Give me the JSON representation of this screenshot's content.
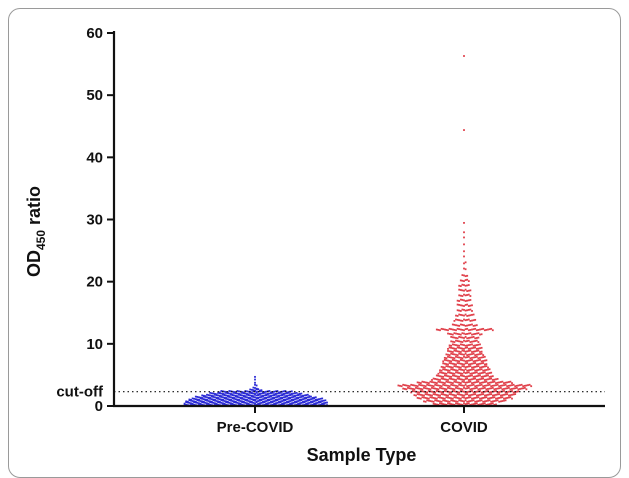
{
  "chart_data": {
    "type": "scatter",
    "subtype": "dot-strip",
    "xlabel": "Sample Type",
    "ylabel_main": "OD",
    "ylabel_sub": "450",
    "ylabel_tail": " ratio",
    "categories": [
      "Pre-COVID",
      "COVID"
    ],
    "ylim": [
      0,
      60
    ],
    "yticks": [
      0,
      10,
      20,
      30,
      40,
      50,
      60
    ],
    "yticklabels": [
      "0",
      "10",
      "20",
      "30",
      "40",
      "50",
      "60"
    ],
    "cutoff": {
      "value": 2.3,
      "label": "cut-off",
      "style": "dotted"
    },
    "grid": false,
    "colors": {
      "Pre-COVID": "#2b2bd6",
      "COVID": "#e0404a",
      "axis": "#111111"
    },
    "series": [
      {
        "name": "Pre-COVID",
        "distribution": [
          {
            "y": 0.2,
            "n": 90
          },
          {
            "y": 0.5,
            "n": 90
          },
          {
            "y": 0.8,
            "n": 88
          },
          {
            "y": 1.1,
            "n": 84
          },
          {
            "y": 1.4,
            "n": 76
          },
          {
            "y": 1.7,
            "n": 68
          },
          {
            "y": 2.0,
            "n": 58
          },
          {
            "y": 2.3,
            "n": 46
          },
          {
            "y": 2.6,
            "n": 8
          },
          {
            "y": 2.9,
            "n": 3
          },
          {
            "y": 3.3,
            "n": 2
          },
          {
            "y": 3.8,
            "n": 1
          },
          {
            "y": 4.2,
            "n": 1
          },
          {
            "y": 4.8,
            "n": 1
          }
        ]
      },
      {
        "name": "COVID",
        "distribution": [
          {
            "y": 0.3,
            "n": 40
          },
          {
            "y": 0.8,
            "n": 52
          },
          {
            "y": 1.3,
            "n": 60
          },
          {
            "y": 1.8,
            "n": 64
          },
          {
            "y": 2.3,
            "n": 68
          },
          {
            "y": 2.8,
            "n": 78
          },
          {
            "y": 3.3,
            "n": 84
          },
          {
            "y": 3.8,
            "n": 60
          },
          {
            "y": 4.3,
            "n": 42
          },
          {
            "y": 4.8,
            "n": 36
          },
          {
            "y": 5.3,
            "n": 34
          },
          {
            "y": 5.8,
            "n": 32
          },
          {
            "y": 6.3,
            "n": 30
          },
          {
            "y": 6.8,
            "n": 28
          },
          {
            "y": 7.3,
            "n": 28
          },
          {
            "y": 7.8,
            "n": 26
          },
          {
            "y": 8.3,
            "n": 24
          },
          {
            "y": 8.8,
            "n": 22
          },
          {
            "y": 9.3,
            "n": 22
          },
          {
            "y": 9.8,
            "n": 20
          },
          {
            "y": 10.4,
            "n": 18
          },
          {
            "y": 11.0,
            "n": 18
          },
          {
            "y": 11.6,
            "n": 22
          },
          {
            "y": 12.3,
            "n": 36
          },
          {
            "y": 13.0,
            "n": 16
          },
          {
            "y": 13.8,
            "n": 14
          },
          {
            "y": 14.6,
            "n": 12
          },
          {
            "y": 15.4,
            "n": 10
          },
          {
            "y": 16.2,
            "n": 10
          },
          {
            "y": 17.0,
            "n": 9
          },
          {
            "y": 17.8,
            "n": 8
          },
          {
            "y": 18.6,
            "n": 8
          },
          {
            "y": 19.4,
            "n": 7
          },
          {
            "y": 20.2,
            "n": 6
          },
          {
            "y": 21.0,
            "n": 4
          },
          {
            "y": 22.0,
            "n": 2
          },
          {
            "y": 23.0,
            "n": 2
          },
          {
            "y": 24.0,
            "n": 1
          },
          {
            "y": 25.0,
            "n": 1
          },
          {
            "y": 26.0,
            "n": 1
          },
          {
            "y": 27.0,
            "n": 1
          },
          {
            "y": 28.0,
            "n": 1
          },
          {
            "y": 29.4,
            "n": 1
          },
          {
            "y": 44.5,
            "n": 1
          },
          {
            "y": 56.3,
            "n": 1
          }
        ]
      }
    ]
  }
}
